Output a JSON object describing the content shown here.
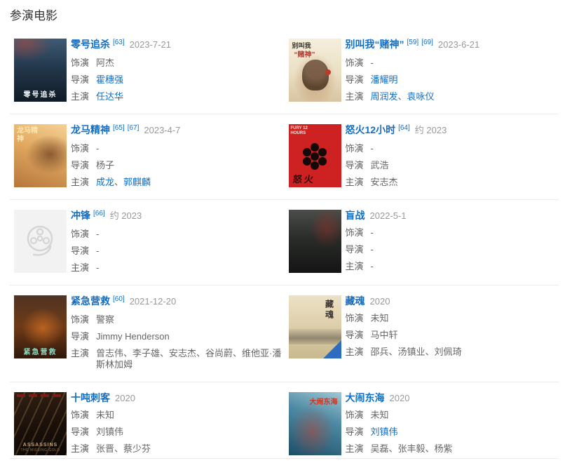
{
  "page": {
    "heading": "参演电影"
  },
  "colors": {
    "link": "#136ec2",
    "label": "#5f5f5f",
    "value": "#666666",
    "date": "#999999",
    "divider": "#ebebeb",
    "placeholder_bg": "#f2f2f2"
  },
  "movies": [
    {
      "title": "零号追杀",
      "refs": [
        "[63]"
      ],
      "date": "2023-7-21",
      "poster": {
        "kind": "p1",
        "texts": [
          "零号追杀"
        ]
      },
      "rows": [
        {
          "label": "饰演",
          "segments": [
            {
              "text": "阿杰",
              "link": false
            }
          ]
        },
        {
          "label": "导演",
          "segments": [
            {
              "text": "霍穗强",
              "link": true
            }
          ]
        },
        {
          "label": "主演",
          "segments": [
            {
              "text": "任达华",
              "link": true
            }
          ]
        }
      ]
    },
    {
      "title": "别叫我“赌神”",
      "refs": [
        "[59]",
        "[69]"
      ],
      "date": "2023-6-21",
      "poster": {
        "kind": "p2",
        "texts": [
          "别叫我",
          "“赌神”"
        ]
      },
      "rows": [
        {
          "label": "饰演",
          "segments": [
            {
              "text": "-",
              "link": false
            }
          ]
        },
        {
          "label": "导演",
          "segments": [
            {
              "text": "潘耀明",
              "link": true
            }
          ]
        },
        {
          "label": "主演",
          "segments": [
            {
              "text": "周润发",
              "link": true
            },
            {
              "text": "、",
              "link": false
            },
            {
              "text": "袁咏仪",
              "link": true
            }
          ]
        }
      ]
    },
    {
      "title": "龙马精神",
      "refs": [
        "[65]",
        "[67]"
      ],
      "date": "2023-4-7",
      "poster": {
        "kind": "p3",
        "texts": [
          "龙马精神"
        ]
      },
      "rows": [
        {
          "label": "饰演",
          "segments": [
            {
              "text": "-",
              "link": false
            }
          ]
        },
        {
          "label": "导演",
          "segments": [
            {
              "text": "杨子",
              "link": false
            }
          ]
        },
        {
          "label": "主演",
          "segments": [
            {
              "text": "成龙",
              "link": true
            },
            {
              "text": "、",
              "link": false
            },
            {
              "text": "郭麒麟",
              "link": true
            }
          ]
        }
      ]
    },
    {
      "title": "怒火12小时",
      "refs": [
        "[64]"
      ],
      "date": "约 2023",
      "poster": {
        "kind": "p4",
        "texts": [
          "FURY 12 HOURS",
          "怒火"
        ]
      },
      "rows": [
        {
          "label": "饰演",
          "segments": [
            {
              "text": "-",
              "link": false
            }
          ]
        },
        {
          "label": "导演",
          "segments": [
            {
              "text": "武浩",
              "link": false
            }
          ]
        },
        {
          "label": "主演",
          "segments": [
            {
              "text": "安志杰",
              "link": false
            }
          ]
        }
      ]
    },
    {
      "title": "冲锋",
      "refs": [
        "[66]"
      ],
      "date": "约 2023",
      "poster": {
        "kind": "p5",
        "texts": []
      },
      "rows": [
        {
          "label": "饰演",
          "segments": [
            {
              "text": "-",
              "link": false
            }
          ]
        },
        {
          "label": "导演",
          "segments": [
            {
              "text": "-",
              "link": false
            }
          ]
        },
        {
          "label": "主演",
          "segments": [
            {
              "text": "-",
              "link": false
            }
          ]
        }
      ]
    },
    {
      "title": "盲战",
      "refs": [],
      "date": "2022-5-1",
      "poster": {
        "kind": "p6",
        "texts": []
      },
      "rows": [
        {
          "label": "饰演",
          "segments": [
            {
              "text": "-",
              "link": false
            }
          ]
        },
        {
          "label": "导演",
          "segments": [
            {
              "text": "-",
              "link": false
            }
          ]
        },
        {
          "label": "主演",
          "segments": [
            {
              "text": "-",
              "link": false
            }
          ]
        }
      ]
    },
    {
      "title": "紧急营救",
      "refs": [
        "[60]"
      ],
      "date": "2021-12-20",
      "poster": {
        "kind": "p7",
        "texts": [
          "紧急营救"
        ]
      },
      "rows": [
        {
          "label": "饰演",
          "segments": [
            {
              "text": "警察",
              "link": false
            }
          ]
        },
        {
          "label": "导演",
          "segments": [
            {
              "text": "Jimmy Henderson",
              "link": false
            }
          ]
        },
        {
          "label": "主演",
          "segments": [
            {
              "text": "曾志伟、李子雄、安志杰、谷尚蔚、维他亚·潘斯林加姆",
              "link": false
            }
          ]
        }
      ]
    },
    {
      "title": "藏魂",
      "refs": [],
      "date": "2020",
      "poster": {
        "kind": "p8",
        "texts": [
          "藏魂"
        ]
      },
      "rows": [
        {
          "label": "饰演",
          "segments": [
            {
              "text": "未知",
              "link": false
            }
          ]
        },
        {
          "label": "导演",
          "segments": [
            {
              "text": "马中轩",
              "link": false
            }
          ]
        },
        {
          "label": "主演",
          "segments": [
            {
              "text": "邵兵、汤镇业、刘佩琦",
              "link": false
            }
          ]
        }
      ]
    },
    {
      "title": "十吨刺客",
      "refs": [],
      "date": "2020",
      "poster": {
        "kind": "p9",
        "texts": [
          "ASSASSINS",
          "THE MISSING GOLD"
        ]
      },
      "rows": [
        {
          "label": "饰演",
          "segments": [
            {
              "text": "未知",
              "link": false
            }
          ]
        },
        {
          "label": "导演",
          "segments": [
            {
              "text": "刘镇伟",
              "link": false
            }
          ]
        },
        {
          "label": "主演",
          "segments": [
            {
              "text": "张晋、蔡少芬",
              "link": false
            }
          ]
        }
      ]
    },
    {
      "title": "大闹东海",
      "refs": [],
      "date": "2020",
      "poster": {
        "kind": "p10",
        "texts": [
          "大闹东海"
        ]
      },
      "rows": [
        {
          "label": "饰演",
          "segments": [
            {
              "text": "未知",
              "link": false
            }
          ]
        },
        {
          "label": "导演",
          "segments": [
            {
              "text": "刘镇伟",
              "link": true
            }
          ]
        },
        {
          "label": "主演",
          "segments": [
            {
              "text": "吴磊、张丰毅、杨紫",
              "link": false
            }
          ]
        }
      ]
    }
  ]
}
